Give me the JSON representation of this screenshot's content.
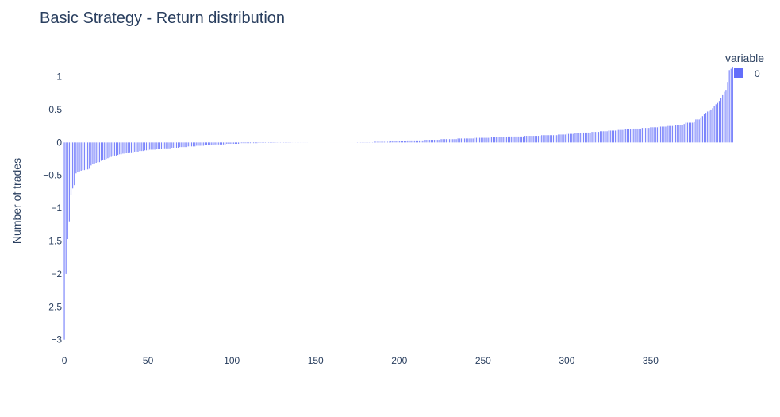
{
  "chart_data": {
    "type": "bar",
    "title": "Basic Strategy - Return distribution",
    "xlabel": "",
    "ylabel": "Number of trades",
    "xlim": [
      -0.5,
      386.5
    ],
    "ylim": [
      -3.1,
      1.2
    ],
    "x_ticks": [
      0,
      50,
      100,
      150,
      200,
      250,
      300,
      350
    ],
    "y_ticks": [
      -3,
      -2.5,
      -2,
      -1.5,
      -1,
      -0.5,
      0,
      0.5,
      1
    ],
    "y_tick_labels": [
      "−3",
      "−2.5",
      "−2",
      "−1.5",
      "−1",
      "−0.5",
      "0",
      "0.5",
      "1"
    ],
    "legend": {
      "title": "variable",
      "position": "top-right",
      "entries": [
        {
          "name": "0",
          "color": "#636efa"
        }
      ]
    },
    "grid": false,
    "series": [
      {
        "name": "0",
        "color": "#636efa",
        "values": [
          -3.0,
          -2.0,
          -1.47,
          -1.2,
          -0.8,
          -0.7,
          -0.65,
          -0.47,
          -0.45,
          -0.44,
          -0.43,
          -0.42,
          -0.42,
          -0.41,
          -0.41,
          -0.4,
          -0.35,
          -0.33,
          -0.32,
          -0.31,
          -0.3,
          -0.3,
          -0.28,
          -0.27,
          -0.26,
          -0.25,
          -0.24,
          -0.23,
          -0.22,
          -0.21,
          -0.2,
          -0.2,
          -0.19,
          -0.18,
          -0.18,
          -0.17,
          -0.17,
          -0.16,
          -0.16,
          -0.15,
          -0.15,
          -0.15,
          -0.14,
          -0.14,
          -0.14,
          -0.13,
          -0.13,
          -0.13,
          -0.12,
          -0.12,
          -0.12,
          -0.11,
          -0.11,
          -0.11,
          -0.11,
          -0.1,
          -0.1,
          -0.1,
          -0.1,
          -0.09,
          -0.09,
          -0.09,
          -0.09,
          -0.09,
          -0.08,
          -0.08,
          -0.08,
          -0.08,
          -0.08,
          -0.07,
          -0.07,
          -0.07,
          -0.07,
          -0.07,
          -0.06,
          -0.06,
          -0.06,
          -0.06,
          -0.06,
          -0.05,
          -0.05,
          -0.05,
          -0.05,
          -0.05,
          -0.04,
          -0.04,
          -0.04,
          -0.04,
          -0.04,
          -0.04,
          -0.03,
          -0.03,
          -0.03,
          -0.03,
          -0.03,
          -0.03,
          -0.03,
          -0.02,
          -0.02,
          -0.02,
          -0.02,
          -0.02,
          -0.02,
          -0.02,
          -0.02,
          -0.01,
          -0.01,
          -0.01,
          -0.01,
          -0.01,
          -0.01,
          -0.01,
          -0.01,
          -0.01,
          -0.01,
          -0.01,
          -0.005,
          -0.005,
          -0.005,
          -0.005,
          -0.005,
          -0.005,
          -0.005,
          -0.005,
          -0.005,
          -0.005,
          -0.003,
          -0.003,
          -0.003,
          -0.003,
          -0.003,
          -0.003,
          -0.003,
          -0.003,
          -0.003,
          -0.003,
          -0.001,
          -0.001,
          -0.001,
          -0.001,
          -0.001,
          -0.001,
          -0.001,
          -0.001,
          -0.001,
          -0.001,
          0,
          0,
          0,
          0,
          0,
          0,
          0,
          0,
          0,
          0,
          0,
          0,
          0,
          0,
          0,
          0,
          0,
          0,
          0,
          0,
          0,
          0,
          0,
          0,
          0,
          0,
          0,
          0,
          0,
          0.003,
          0.003,
          0.003,
          0.003,
          0.003,
          0.003,
          0.003,
          0.003,
          0.003,
          0.003,
          0.01,
          0.01,
          0.01,
          0.01,
          0.01,
          0.01,
          0.01,
          0.01,
          0.01,
          0.01,
          0.02,
          0.02,
          0.02,
          0.02,
          0.02,
          0.02,
          0.02,
          0.02,
          0.02,
          0.02,
          0.03,
          0.03,
          0.03,
          0.03,
          0.03,
          0.03,
          0.03,
          0.03,
          0.03,
          0.03,
          0.04,
          0.04,
          0.04,
          0.04,
          0.04,
          0.04,
          0.04,
          0.04,
          0.04,
          0.04,
          0.05,
          0.05,
          0.05,
          0.05,
          0.05,
          0.05,
          0.05,
          0.05,
          0.05,
          0.05,
          0.06,
          0.06,
          0.06,
          0.06,
          0.06,
          0.06,
          0.06,
          0.06,
          0.06,
          0.06,
          0.07,
          0.07,
          0.07,
          0.07,
          0.07,
          0.07,
          0.07,
          0.07,
          0.07,
          0.07,
          0.08,
          0.08,
          0.08,
          0.08,
          0.08,
          0.08,
          0.08,
          0.08,
          0.08,
          0.08,
          0.09,
          0.09,
          0.09,
          0.09,
          0.09,
          0.09,
          0.09,
          0.09,
          0.09,
          0.09,
          0.1,
          0.1,
          0.1,
          0.1,
          0.1,
          0.1,
          0.1,
          0.1,
          0.1,
          0.1,
          0.11,
          0.11,
          0.11,
          0.11,
          0.11,
          0.11,
          0.11,
          0.11,
          0.11,
          0.11,
          0.12,
          0.12,
          0.12,
          0.12,
          0.12,
          0.13,
          0.13,
          0.13,
          0.13,
          0.13,
          0.14,
          0.14,
          0.14,
          0.14,
          0.14,
          0.15,
          0.15,
          0.15,
          0.15,
          0.15,
          0.16,
          0.16,
          0.16,
          0.16,
          0.16,
          0.17,
          0.17,
          0.17,
          0.17,
          0.17,
          0.18,
          0.18,
          0.18,
          0.18,
          0.18,
          0.19,
          0.19,
          0.19,
          0.19,
          0.19,
          0.2,
          0.2,
          0.2,
          0.2,
          0.2,
          0.21,
          0.21,
          0.21,
          0.21,
          0.21,
          0.22,
          0.22,
          0.22,
          0.22,
          0.22,
          0.23,
          0.23,
          0.23,
          0.23,
          0.23,
          0.24,
          0.24,
          0.24,
          0.24,
          0.24,
          0.25,
          0.25,
          0.25,
          0.25,
          0.25,
          0.26,
          0.26,
          0.26,
          0.26,
          0.26,
          0.28,
          0.3,
          0.3,
          0.3,
          0.3,
          0.3,
          0.32,
          0.35,
          0.35,
          0.35,
          0.38,
          0.4,
          0.43,
          0.45,
          0.47,
          0.48,
          0.5,
          0.52,
          0.55,
          0.58,
          0.6,
          0.63,
          0.68,
          0.73,
          0.77,
          0.8,
          0.92,
          1.1,
          1.12,
          1.15
        ]
      }
    ]
  }
}
